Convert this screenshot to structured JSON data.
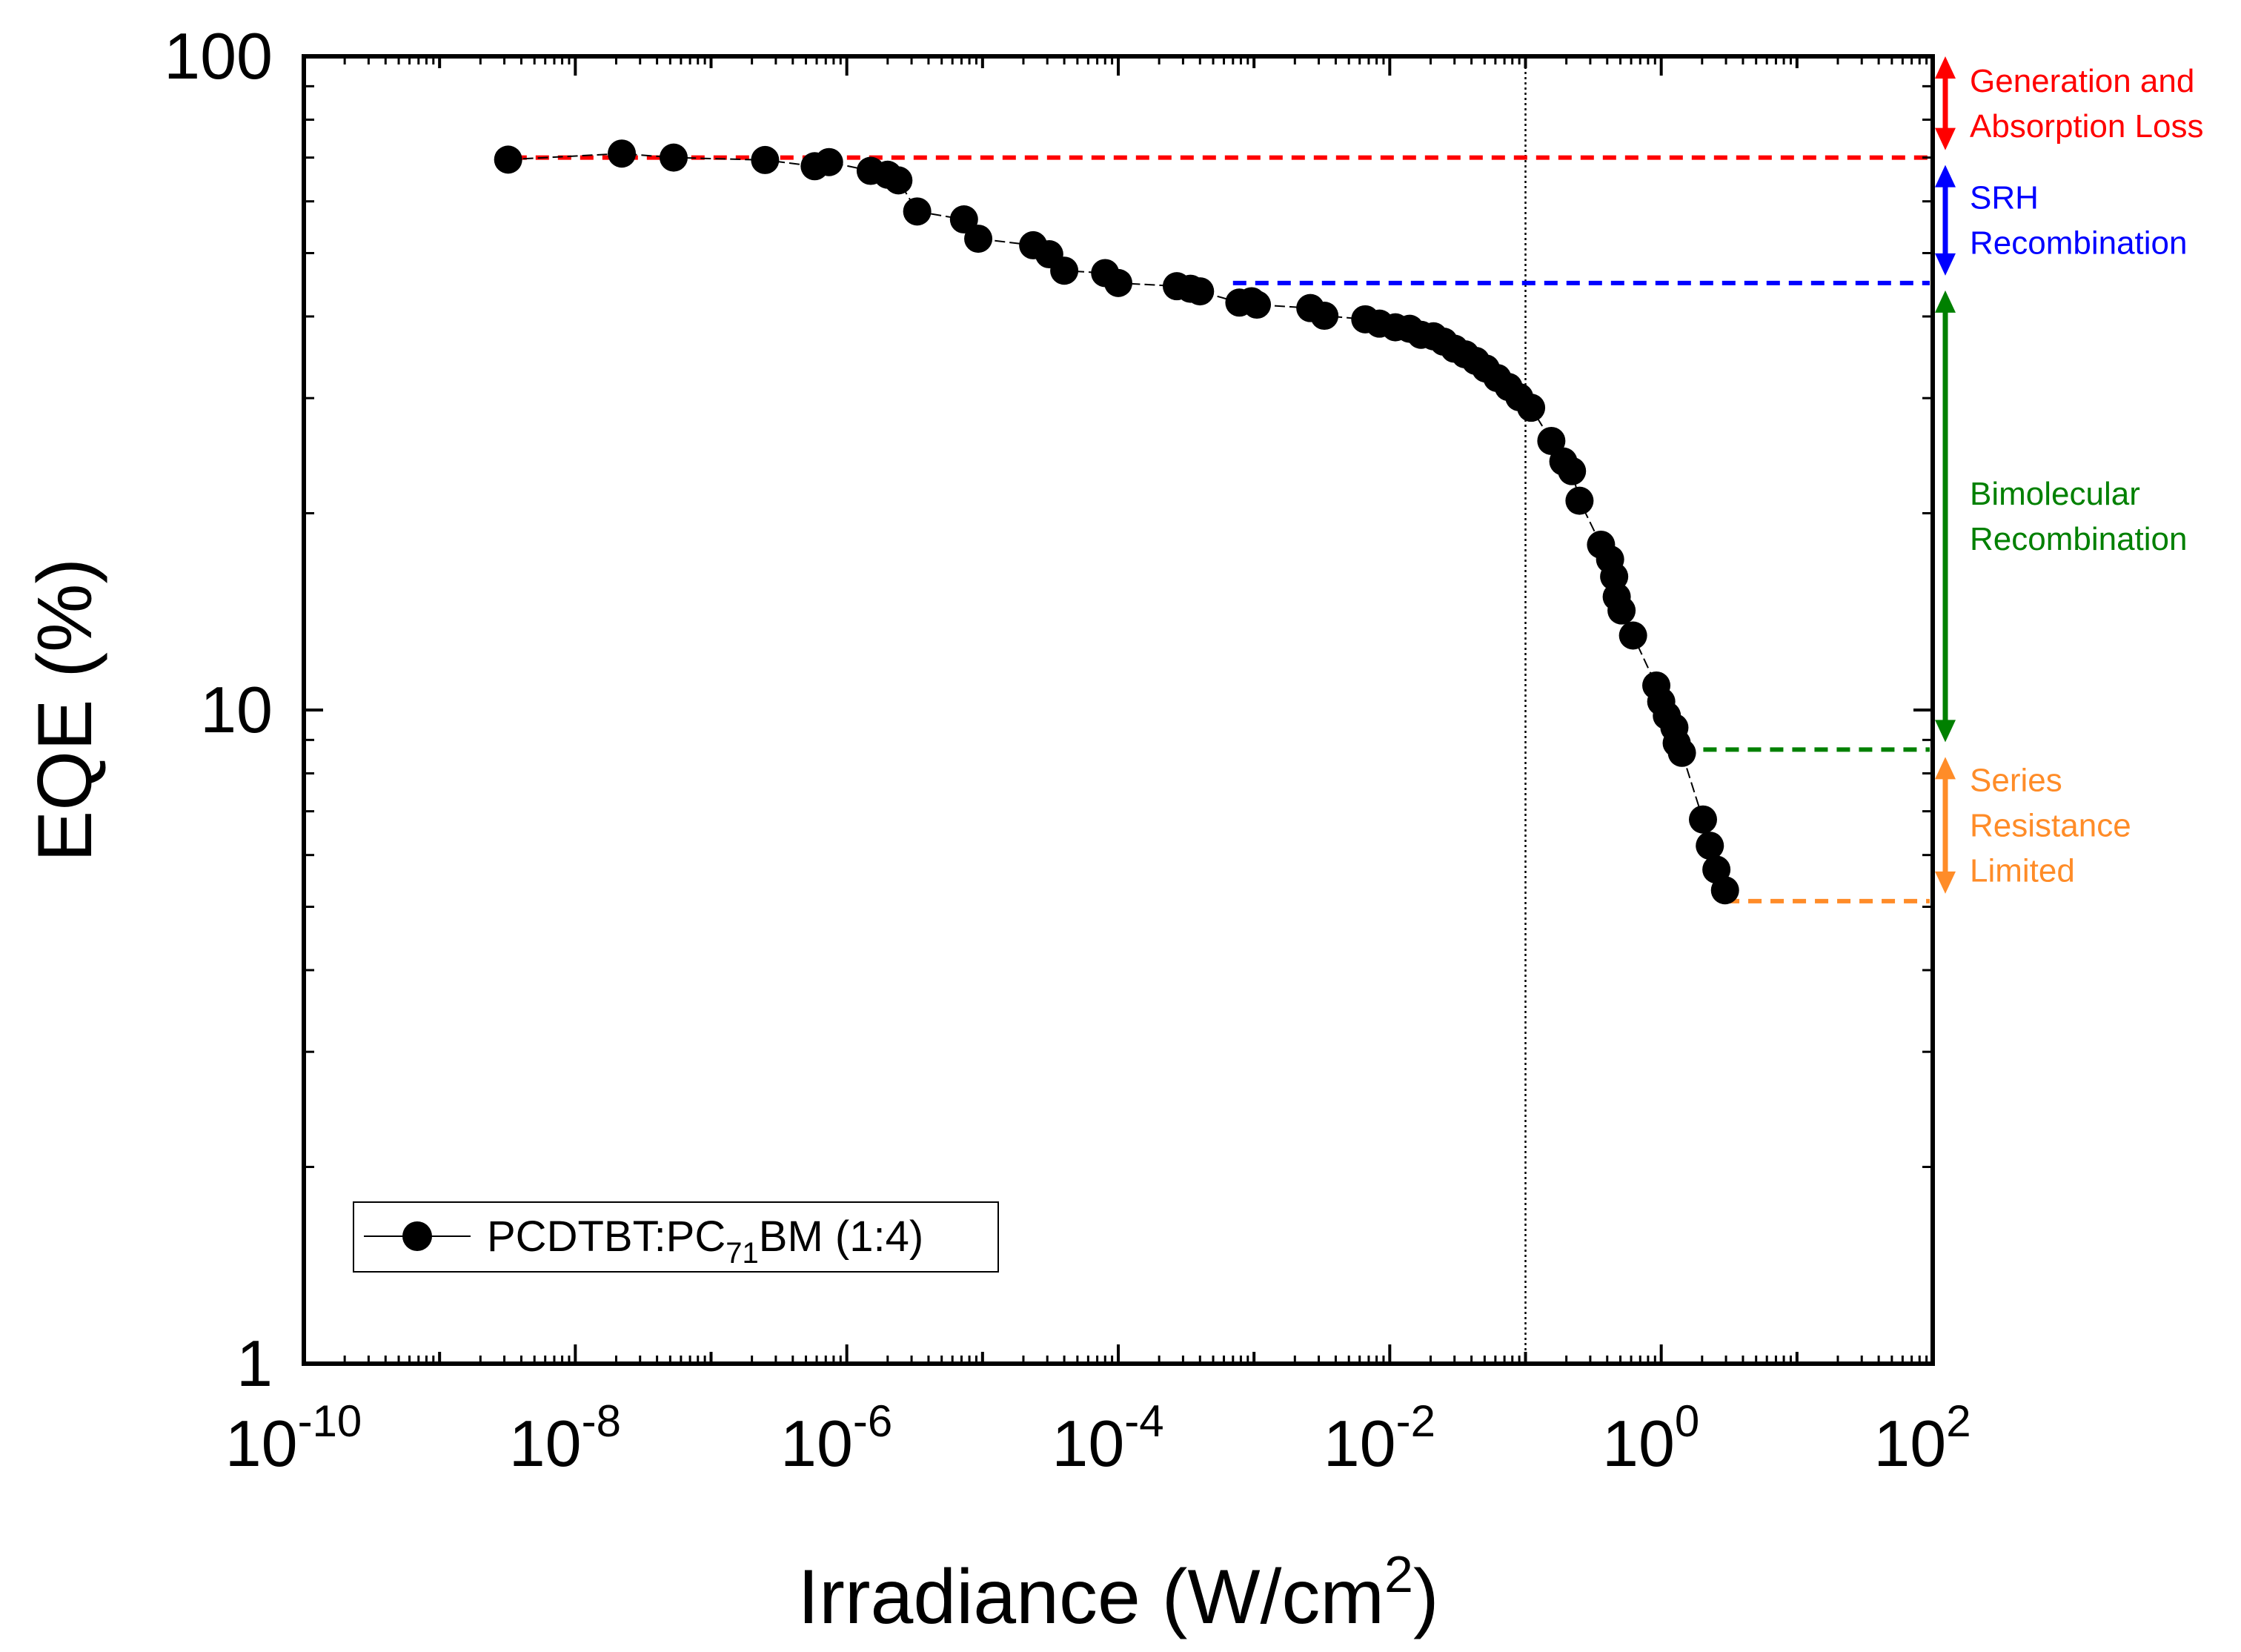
{
  "chart_data": {
    "type": "scatter",
    "xlabel": "Irradiance (W/cm",
    "xlabel_sup": "2",
    "xlabel_close": ")",
    "ylabel": "EQE (%)",
    "x_scale": "log",
    "y_scale": "log",
    "xlim": [
      1e-10,
      100
    ],
    "ylim": [
      1,
      100
    ],
    "x_ticks": [
      {
        "base": "10",
        "exp": "-10",
        "value": 1e-10
      },
      {
        "base": "10",
        "exp": "-8",
        "value": 1e-08
      },
      {
        "base": "10",
        "exp": "-6",
        "value": 1e-06
      },
      {
        "base": "10",
        "exp": "-4",
        "value": 0.0001
      },
      {
        "base": "10",
        "exp": "-2",
        "value": 0.01
      },
      {
        "base": "10",
        "exp": "0",
        "value": 1
      },
      {
        "base": "10",
        "exp": "2",
        "value": 100
      }
    ],
    "y_ticks": [
      {
        "label": "1",
        "value": 1
      },
      {
        "label": "10",
        "value": 10
      },
      {
        "label": "100",
        "value": 100
      }
    ],
    "grid": false,
    "legend_position": "bottom-left",
    "legend": {
      "prefix": "PCDTBT:PC",
      "subscript": "71",
      "suffix": "BM (1:4)"
    },
    "series": [
      {
        "color": "#000000",
        "marker": "circle",
        "x": [
          3.2e-09,
          2.2e-08,
          5.3e-08,
          2.5e-07,
          5.8e-07,
          7.4e-07,
          1.5e-06,
          2e-06,
          2.4e-06,
          3.3e-06,
          7.3e-06,
          9.3e-06,
          2.36e-05,
          3.1e-05,
          4e-05,
          8e-05,
          0.0001,
          0.00027,
          0.00034,
          0.0004,
          0.00078,
          0.00096,
          0.00105,
          0.0026,
          0.0033,
          0.0066,
          0.0084,
          0.011,
          0.014,
          0.017,
          0.021,
          0.025,
          0.03,
          0.036,
          0.043,
          0.051,
          0.062,
          0.075,
          0.09,
          0.11,
          0.155,
          0.19,
          0.22,
          0.25,
          0.36,
          0.42,
          0.45,
          0.47,
          0.51,
          0.62,
          0.92,
          1.0,
          1.1,
          1.25,
          1.3,
          1.42,
          2.03,
          2.28,
          2.55,
          2.95
        ],
        "y": [
          69.5,
          71.0,
          70.0,
          69.4,
          67.9,
          68.9,
          66.8,
          65.9,
          64.6,
          57.9,
          56.3,
          52.6,
          51.4,
          49.8,
          47.0,
          46.6,
          45.0,
          44.5,
          44.1,
          43.7,
          42.0,
          42.2,
          41.7,
          41.2,
          40.1,
          39.6,
          39.0,
          38.5,
          38.3,
          37.5,
          37.3,
          36.6,
          35.7,
          35.0,
          34.2,
          33.3,
          32.2,
          31.2,
          30.1,
          29.0,
          25.8,
          24.0,
          23.2,
          20.9,
          17.9,
          17.0,
          16.0,
          14.9,
          14.2,
          13.0,
          10.9,
          10.3,
          9.8,
          9.4,
          8.9,
          8.6,
          6.8,
          6.2,
          5.7,
          5.3
        ]
      }
    ],
    "reference_lines": {
      "vertical_x": 0.1,
      "generation_level": 70.0,
      "srh_level": 45.0,
      "bimolecular_level": 8.7,
      "series_resistance_level": 5.1,
      "generation_start_x": 3.5e-09,
      "srh_start_x": 0.0007,
      "bimolecular_start_x": 1.4,
      "series_resistance_start_x": 3.0
    },
    "annotations": [
      {
        "key": "generation",
        "line1": "Generation and",
        "line2": "Absorption Loss",
        "color": "#ff0000",
        "top": 100,
        "bottom": 70.0
      },
      {
        "key": "srh",
        "line1": "SRH",
        "line2": "Recombination",
        "color": "#0000ff",
        "top": 70.0,
        "bottom": 45.0
      },
      {
        "key": "bimolecular",
        "line1": "Bimolecular",
        "line2": "Recombination",
        "color": "#008000",
        "top": 45.0,
        "bottom": 8.7
      },
      {
        "key": "series",
        "line1": "Series",
        "line2": "Resistance",
        "line3": "Limited",
        "color": "#ff8c28",
        "top": 8.7,
        "bottom": 5.1
      }
    ]
  }
}
